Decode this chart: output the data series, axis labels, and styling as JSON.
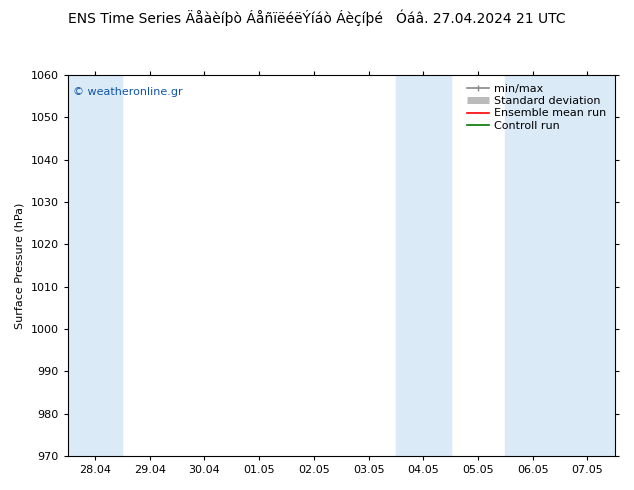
{
  "title": "ENS Time Series Äåàèíþò ÁåñïëéëÝíáò Áèçíþé   Óáâ. 27.04.2024 21 UTC",
  "ylabel": "Surface Pressure (hPa)",
  "yticks": [
    970,
    980,
    990,
    1000,
    1010,
    1020,
    1030,
    1040,
    1050,
    1060
  ],
  "ylim": [
    970,
    1060
  ],
  "xtick_labels": [
    "28.04",
    "29.04",
    "30.04",
    "01.05",
    "02.05",
    "03.05",
    "04.05",
    "05.05",
    "06.05",
    "07.05"
  ],
  "xtick_positions": [
    0,
    1,
    2,
    3,
    4,
    5,
    6,
    7,
    8,
    9
  ],
  "xlim": [
    -0.5,
    9.5
  ],
  "shaded_bands": [
    {
      "xmin": -0.5,
      "xmax": 0.5,
      "color": "#daeaf7"
    },
    {
      "xmin": 5.5,
      "xmax": 6.0,
      "color": "#daeaf7"
    },
    {
      "xmin": 6.0,
      "xmax": 6.5,
      "color": "#daeaf7"
    },
    {
      "xmin": 7.5,
      "xmax": 8.0,
      "color": "#daeaf7"
    },
    {
      "xmin": 8.0,
      "xmax": 9.5,
      "color": "#daeaf7"
    }
  ],
  "legend_entries": [
    {
      "label": "min/max",
      "color": "#888888",
      "lw": 1.2
    },
    {
      "label": "Standard deviation",
      "color": "#bbbbbb",
      "lw": 5
    },
    {
      "label": "Ensemble mean run",
      "color": "#ff0000",
      "lw": 1.2
    },
    {
      "label": "Controll run",
      "color": "#007700",
      "lw": 1.2
    }
  ],
  "watermark": "© weatheronline.gr",
  "watermark_color": "#1155aa",
  "bg_color": "#ffffff",
  "title_fontsize": 10,
  "label_fontsize": 8,
  "tick_fontsize": 8,
  "legend_fontsize": 8
}
